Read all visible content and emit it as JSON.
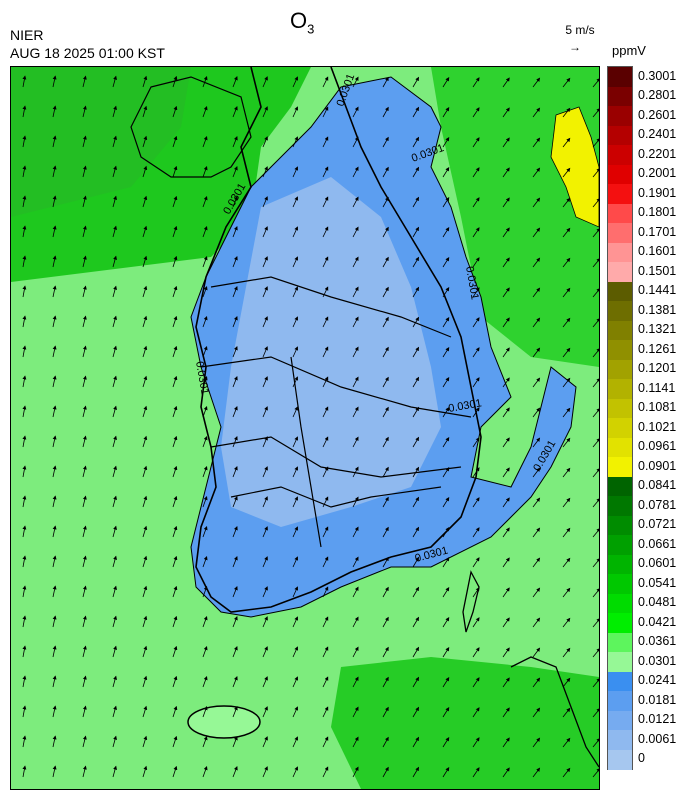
{
  "header": {
    "org": "NIER",
    "timestamp": "AUG 18 2025 01:00 KST",
    "title_main": "O",
    "title_sub": "3",
    "wind_ref_label": "5 m/s",
    "wind_ref_arrow": "→",
    "unit": "ppmV"
  },
  "colorbar": {
    "labels": [
      "0.3001",
      "0.2801",
      "0.2601",
      "0.2401",
      "0.2201",
      "0.2001",
      "0.1901",
      "0.1801",
      "0.1701",
      "0.1601",
      "0.1501",
      "0.1441",
      "0.1381",
      "0.1321",
      "0.1261",
      "0.1201",
      "0.1141",
      "0.1081",
      "0.1021",
      "0.0961",
      "0.0901",
      "0.0841",
      "0.0781",
      "0.0721",
      "0.0661",
      "0.0601",
      "0.0541",
      "0.0481",
      "0.0421",
      "0.0361",
      "0.0301",
      "0.0241",
      "0.0181",
      "0.0121",
      "0.0061",
      "0"
    ],
    "colors": [
      "#5a0000",
      "#7a0000",
      "#9a0000",
      "#b40000",
      "#cc0000",
      "#e00000",
      "#f41010",
      "#ff4a4a",
      "#ff6e6e",
      "#ff9494",
      "#ffaaaa",
      "#5c5c00",
      "#6e6e00",
      "#808000",
      "#909000",
      "#a2a200",
      "#b2b200",
      "#c2c200",
      "#d2d200",
      "#e2e200",
      "#f2f200",
      "#006400",
      "#007800",
      "#008c00",
      "#00a000",
      "#00b400",
      "#00c800",
      "#00dc00",
      "#00ee00",
      "#5df55d",
      "#96f896",
      "#3a8ff0",
      "#5c9ef0",
      "#76abf0",
      "#8fb9ef",
      "#a6c7ef"
    ]
  },
  "map": {
    "contour_labels": [
      "0.0301",
      "0.0301",
      "0.0301",
      "0.0301",
      "0.0301",
      "0.0301",
      "0.0301",
      "0.0301"
    ]
  }
}
